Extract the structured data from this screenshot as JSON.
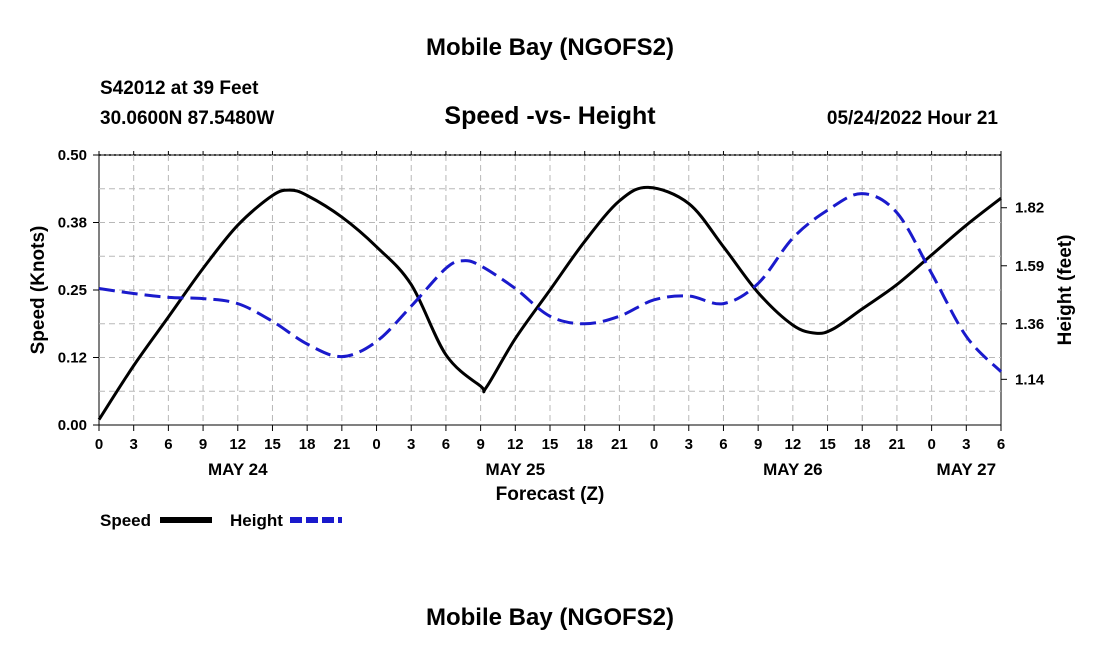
{
  "header": {
    "title_top": "Mobile Bay (NGOFS2)",
    "station_line": "S42012 at 39 Feet",
    "coord_line": "30.0600N  87.5480W",
    "chart_title": "Speed -vs- Height",
    "datetime": "05/24/2022 Hour 21",
    "title_bottom": "Mobile Bay (NGOFS2)"
  },
  "chart_data": {
    "type": "line",
    "title": "Speed -vs- Height",
    "xlabel": "Forecast (Z)",
    "ylabel": "Speed (Knots)",
    "ylabel_right": "Height (feet)",
    "x_unit": "forecast hour",
    "xlim": [
      0,
      78
    ],
    "ylim": [
      0,
      0.5
    ],
    "ylim_right": [
      0.959,
      2.029
    ],
    "x_ticks": [
      0,
      3,
      6,
      9,
      12,
      15,
      18,
      21,
      24,
      27,
      30,
      33,
      36,
      39,
      42,
      45,
      48,
      51,
      54,
      57,
      60,
      63,
      66,
      69,
      72,
      75,
      78
    ],
    "x_tick_labels": [
      "0",
      "3",
      "6",
      "9",
      "12",
      "15",
      "18",
      "21",
      "0",
      "3",
      "6",
      "9",
      "12",
      "15",
      "18",
      "21",
      "0",
      "3",
      "6",
      "9",
      "12",
      "15",
      "18",
      "21",
      "0",
      "3",
      "6"
    ],
    "date_labels": [
      {
        "x": 12,
        "label": "MAY 24"
      },
      {
        "x": 36,
        "label": "MAY 25"
      },
      {
        "x": 60,
        "label": "MAY 26"
      },
      {
        "x": 75,
        "label": "MAY 27"
      }
    ],
    "y_ticks": [
      0,
      0.125,
      0.25,
      0.375,
      0.5
    ],
    "y_tick_labels": [
      "0.00",
      "0.12",
      "0.25",
      "0.38",
      "0.50"
    ],
    "y_ticks_right": [
      1.14,
      1.36,
      1.59,
      1.82
    ],
    "y_tick_labels_right": [
      "1.14",
      "1.36",
      "1.59",
      "1.82"
    ],
    "series": [
      {
        "name": "Speed",
        "axis": "left",
        "color": "#000000",
        "dash": "solid",
        "x": [
          0,
          3,
          6,
          9,
          12,
          15,
          16.5,
          18,
          21,
          24,
          27,
          30,
          33,
          33.5,
          36,
          39,
          42,
          45,
          47.5,
          51,
          54,
          57,
          60,
          62,
          63.5,
          66,
          69,
          72,
          75,
          78
        ],
        "y": [
          0.01,
          0.11,
          0.2,
          0.29,
          0.37,
          0.425,
          0.435,
          0.425,
          0.385,
          0.33,
          0.26,
          0.13,
          0.072,
          0.07,
          0.16,
          0.25,
          0.34,
          0.415,
          0.44,
          0.41,
          0.33,
          0.245,
          0.185,
          0.17,
          0.178,
          0.215,
          0.26,
          0.315,
          0.37,
          0.42
        ]
      },
      {
        "name": "Height",
        "axis": "right",
        "color": "#1a1acc",
        "dash": "dashed",
        "x": [
          0,
          3,
          6,
          9,
          12,
          15,
          18,
          21,
          24,
          27,
          30,
          31.5,
          33,
          36,
          39,
          42,
          45,
          48,
          51,
          54,
          57,
          60,
          63,
          66,
          69,
          72,
          75,
          78
        ],
        "y": [
          1.5,
          1.48,
          1.465,
          1.46,
          1.44,
          1.37,
          1.28,
          1.23,
          1.29,
          1.43,
          1.58,
          1.61,
          1.59,
          1.5,
          1.39,
          1.36,
          1.39,
          1.455,
          1.47,
          1.44,
          1.52,
          1.7,
          1.81,
          1.876,
          1.8,
          1.56,
          1.31,
          1.17
        ]
      }
    ]
  }
}
